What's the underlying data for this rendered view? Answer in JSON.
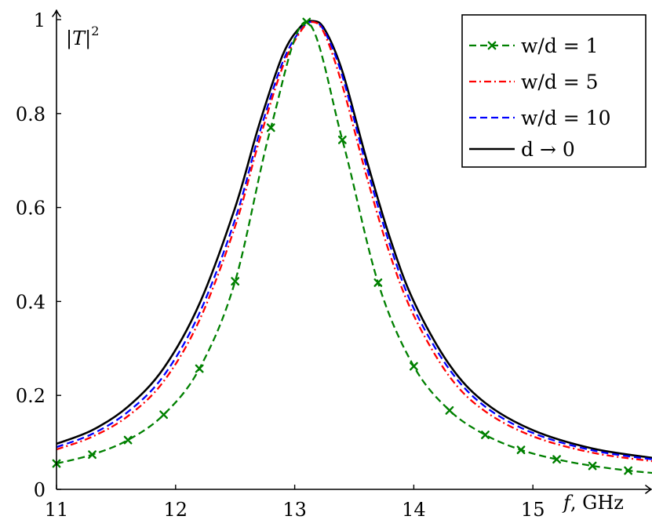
{
  "chart_data": {
    "type": "line",
    "xlabel": "f, GHz",
    "ylabel": "|T|^2",
    "xlim": [
      11,
      16
    ],
    "ylim": [
      0,
      1
    ],
    "x_ticks": [
      11,
      12,
      13,
      14,
      15
    ],
    "y_ticks": [
      0,
      0.2,
      0.4,
      0.6,
      0.8,
      1
    ],
    "y_tick_labels": [
      "0",
      "0.2",
      "0.4",
      "0.6",
      "0.8",
      "1"
    ],
    "grid": false,
    "legend_position": "top-right",
    "series": [
      {
        "name": "w/d = 1",
        "color": "#008000",
        "style": "dashed-with-x-markers",
        "x": [
          11.0,
          11.3,
          11.6,
          11.9,
          12.2,
          12.5,
          12.8,
          13.1,
          13.4,
          13.7,
          14.0,
          14.3,
          14.6,
          14.9,
          15.2,
          15.5,
          15.8,
          16.0
        ],
        "y": [
          0.055,
          0.074,
          0.105,
          0.159,
          0.257,
          0.443,
          0.77,
          0.995,
          0.744,
          0.44,
          0.262,
          0.168,
          0.116,
          0.084,
          0.064,
          0.05,
          0.04,
          0.035
        ],
        "marker_x": [
          11.0,
          11.3,
          11.6,
          11.9,
          12.2,
          12.5,
          12.8,
          13.1,
          13.4,
          13.7,
          14.0,
          14.3,
          14.6,
          14.9,
          15.2,
          15.5,
          15.8
        ]
      },
      {
        "name": "w/d = 5",
        "color": "#ff0000",
        "style": "dash-dot",
        "x": [
          11.0,
          11.3,
          11.6,
          11.9,
          12.2,
          12.5,
          12.7,
          12.9,
          13.05,
          13.15,
          13.25,
          13.4,
          13.6,
          13.8,
          14.0,
          14.3,
          14.6,
          15.0,
          15.5,
          16.0
        ],
        "y": [
          0.085,
          0.112,
          0.156,
          0.23,
          0.36,
          0.56,
          0.74,
          0.9,
          0.975,
          0.995,
          0.97,
          0.86,
          0.67,
          0.5,
          0.37,
          0.24,
          0.166,
          0.113,
          0.078,
          0.06
        ]
      },
      {
        "name": "w/d = 10",
        "color": "#0000ff",
        "style": "dashed",
        "x": [
          11.0,
          11.3,
          11.6,
          11.9,
          12.2,
          12.5,
          12.7,
          12.9,
          13.05,
          13.15,
          13.25,
          13.4,
          13.6,
          13.8,
          14.0,
          14.3,
          14.6,
          15.0,
          15.5,
          16.0
        ],
        "y": [
          0.09,
          0.118,
          0.165,
          0.242,
          0.375,
          0.575,
          0.755,
          0.91,
          0.978,
          0.995,
          0.975,
          0.88,
          0.69,
          0.52,
          0.385,
          0.255,
          0.176,
          0.12,
          0.083,
          0.064
        ]
      },
      {
        "name": "d → 0",
        "color": "#000000",
        "style": "solid",
        "x": [
          11.0,
          11.3,
          11.6,
          11.9,
          12.2,
          12.5,
          12.7,
          12.9,
          13.05,
          13.15,
          13.25,
          13.4,
          13.6,
          13.8,
          14.0,
          14.3,
          14.6,
          15.0,
          15.5,
          16.0
        ],
        "y": [
          0.097,
          0.126,
          0.176,
          0.258,
          0.395,
          0.6,
          0.775,
          0.925,
          0.985,
          0.997,
          0.98,
          0.89,
          0.705,
          0.535,
          0.4,
          0.265,
          0.184,
          0.126,
          0.087,
          0.067
        ]
      }
    ]
  }
}
